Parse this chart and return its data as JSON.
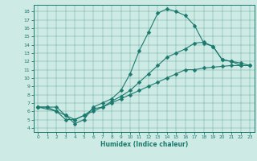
{
  "xlabel": "Humidex (Indice chaleur)",
  "bg_color": "#ceeae4",
  "line_color": "#1a7a6e",
  "xlim": [
    -0.5,
    23.5
  ],
  "ylim": [
    3.5,
    18.8
  ],
  "yticks": [
    4,
    5,
    6,
    7,
    8,
    9,
    10,
    11,
    12,
    13,
    14,
    15,
    16,
    17,
    18
  ],
  "xticks": [
    0,
    1,
    2,
    3,
    4,
    5,
    6,
    7,
    8,
    9,
    10,
    11,
    12,
    13,
    14,
    15,
    16,
    17,
    18,
    19,
    20,
    21,
    22,
    23
  ],
  "line1_x": [
    0,
    1,
    2,
    3,
    4,
    5,
    6,
    7,
    8,
    9,
    10,
    11,
    12,
    13,
    14,
    15,
    16,
    17,
    18,
    19,
    20,
    21,
    22
  ],
  "line1_y": [
    6.5,
    6.5,
    6.5,
    5.5,
    4.5,
    5.0,
    6.5,
    7.0,
    7.5,
    8.5,
    10.5,
    13.3,
    15.5,
    17.8,
    18.3,
    18.0,
    17.5,
    16.3,
    14.2,
    13.8,
    12.2,
    12.0,
    11.5
  ],
  "line2_x": [
    0,
    2,
    3,
    4,
    5,
    6,
    7,
    8,
    9,
    10,
    11,
    12,
    13,
    14,
    15,
    16,
    17,
    18,
    19,
    20,
    21,
    22,
    23
  ],
  "line2_y": [
    6.5,
    6.0,
    5.0,
    5.0,
    5.5,
    6.3,
    6.5,
    7.2,
    7.8,
    8.5,
    9.5,
    10.5,
    11.5,
    12.5,
    13.0,
    13.5,
    14.2,
    14.3,
    13.8,
    12.2,
    12.0,
    11.8,
    11.5
  ],
  "line3_x": [
    0,
    1,
    2,
    3,
    4,
    5,
    6,
    7,
    8,
    9,
    10,
    11,
    12,
    13,
    14,
    15,
    16,
    17,
    18,
    19,
    20,
    21,
    22,
    23
  ],
  "line3_y": [
    6.5,
    6.5,
    6.0,
    5.5,
    5.0,
    5.5,
    6.0,
    6.5,
    7.0,
    7.5,
    8.0,
    8.5,
    9.0,
    9.5,
    10.0,
    10.5,
    11.0,
    11.0,
    11.2,
    11.3,
    11.4,
    11.5,
    11.5,
    11.5
  ]
}
